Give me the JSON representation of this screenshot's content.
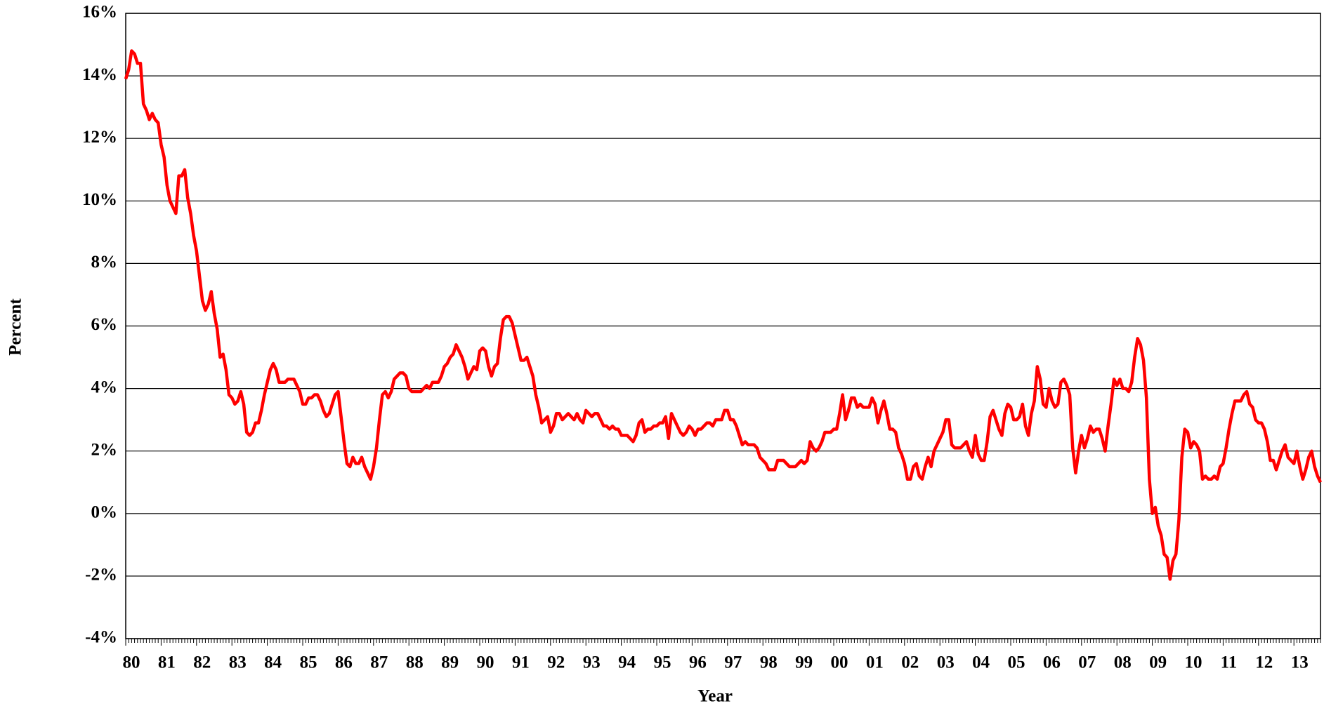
{
  "chart_data": {
    "type": "line",
    "x_label": "Year",
    "y_label": "Percent",
    "categories": [
      "80",
      null,
      null,
      null,
      null,
      null,
      null,
      null,
      null,
      null,
      null,
      null,
      "81",
      null,
      null,
      null,
      null,
      null,
      null,
      null,
      null,
      null,
      null,
      null,
      "82",
      null,
      null,
      null,
      null,
      null,
      null,
      null,
      null,
      null,
      null,
      null,
      "83",
      null,
      null,
      null,
      null,
      null,
      null,
      null,
      null,
      null,
      null,
      null,
      "84",
      null,
      null,
      null,
      null,
      null,
      null,
      null,
      null,
      null,
      null,
      null,
      "85",
      null,
      null,
      null,
      null,
      null,
      null,
      null,
      null,
      null,
      null,
      null,
      "86",
      null,
      null,
      null,
      null,
      null,
      null,
      null,
      null,
      null,
      null,
      null,
      "87",
      null,
      null,
      null,
      null,
      null,
      null,
      null,
      null,
      null,
      null,
      null,
      "88",
      null,
      null,
      null,
      null,
      null,
      null,
      null,
      null,
      null,
      null,
      null,
      "89",
      null,
      null,
      null,
      null,
      null,
      null,
      null,
      null,
      null,
      null,
      null,
      "90",
      null,
      null,
      null,
      null,
      null,
      null,
      null,
      null,
      null,
      null,
      null,
      "91",
      null,
      null,
      null,
      null,
      null,
      null,
      null,
      null,
      null,
      null,
      null,
      "92",
      null,
      null,
      null,
      null,
      null,
      null,
      null,
      null,
      null,
      null,
      null,
      "93",
      null,
      null,
      null,
      null,
      null,
      null,
      null,
      null,
      null,
      null,
      null,
      "94",
      null,
      null,
      null,
      null,
      null,
      null,
      null,
      null,
      null,
      null,
      null,
      "95",
      null,
      null,
      null,
      null,
      null,
      null,
      null,
      null,
      null,
      null,
      null,
      "96",
      null,
      null,
      null,
      null,
      null,
      null,
      null,
      null,
      null,
      null,
      null,
      "97",
      null,
      null,
      null,
      null,
      null,
      null,
      null,
      null,
      null,
      null,
      null,
      "98",
      null,
      null,
      null,
      null,
      null,
      null,
      null,
      null,
      null,
      null,
      null,
      "99",
      null,
      null,
      null,
      null,
      null,
      null,
      null,
      null,
      null,
      null,
      null,
      "00",
      null,
      null,
      null,
      null,
      null,
      null,
      null,
      null,
      null,
      null,
      null,
      "01",
      null,
      null,
      null,
      null,
      null,
      null,
      null,
      null,
      null,
      null,
      null,
      "02",
      null,
      null,
      null,
      null,
      null,
      null,
      null,
      null,
      null,
      null,
      null,
      "03",
      null,
      null,
      null,
      null,
      null,
      null,
      null,
      null,
      null,
      null,
      null,
      "04",
      null,
      null,
      null,
      null,
      null,
      null,
      null,
      null,
      null,
      null,
      null,
      "05",
      null,
      null,
      null,
      null,
      null,
      null,
      null,
      null,
      null,
      null,
      null,
      "06",
      null,
      null,
      null,
      null,
      null,
      null,
      null,
      null,
      null,
      null,
      null,
      "07",
      null,
      null,
      null,
      null,
      null,
      null,
      null,
      null,
      null,
      null,
      null,
      "08",
      null,
      null,
      null,
      null,
      null,
      null,
      null,
      null,
      null,
      null,
      null,
      "09",
      null,
      null,
      null,
      null,
      null,
      null,
      null,
      null,
      null,
      null,
      null,
      "10",
      null,
      null,
      null,
      null,
      null,
      null,
      null,
      null,
      null,
      null,
      null,
      "11",
      null,
      null,
      null,
      null,
      null,
      null,
      null,
      null,
      null,
      null,
      null,
      "12",
      null,
      null,
      null,
      null,
      null,
      null,
      null,
      null,
      null,
      null,
      null,
      "13",
      null,
      null,
      null,
      null,
      null,
      null,
      null,
      null,
      null
    ],
    "series": [
      {
        "color": "#ff0000",
        "values": [
          13.9,
          14.2,
          14.8,
          14.7,
          14.4,
          14.4,
          13.1,
          12.9,
          12.6,
          12.8,
          12.6,
          12.5,
          11.8,
          11.4,
          10.5,
          10.0,
          9.8,
          9.6,
          10.8,
          10.8,
          11.0,
          10.1,
          9.6,
          8.9,
          8.4,
          7.6,
          6.8,
          6.5,
          6.7,
          7.1,
          6.4,
          5.9,
          5.0,
          5.1,
          4.6,
          3.8,
          3.7,
          3.5,
          3.6,
          3.9,
          3.5,
          2.6,
          2.5,
          2.6,
          2.9,
          2.9,
          3.3,
          3.8,
          4.2,
          4.6,
          4.8,
          4.6,
          4.2,
          4.2,
          4.2,
          4.3,
          4.3,
          4.3,
          4.1,
          3.9,
          3.5,
          3.5,
          3.7,
          3.7,
          3.8,
          3.8,
          3.6,
          3.3,
          3.1,
          3.2,
          3.5,
          3.8,
          3.9,
          3.1,
          2.3,
          1.6,
          1.5,
          1.8,
          1.6,
          1.6,
          1.8,
          1.5,
          1.3,
          1.1,
          1.5,
          2.1,
          3.0,
          3.8,
          3.9,
          3.7,
          3.9,
          4.3,
          4.4,
          4.5,
          4.5,
          4.4,
          4.0,
          3.9,
          3.9,
          3.9,
          3.9,
          4.0,
          4.1,
          4.0,
          4.2,
          4.2,
          4.2,
          4.4,
          4.7,
          4.8,
          5.0,
          5.1,
          5.4,
          5.2,
          5.0,
          4.7,
          4.3,
          4.5,
          4.7,
          4.6,
          5.2,
          5.3,
          5.2,
          4.7,
          4.4,
          4.7,
          4.8,
          5.6,
          6.2,
          6.3,
          6.3,
          6.1,
          5.7,
          5.3,
          4.9,
          4.9,
          5.0,
          4.7,
          4.4,
          3.8,
          3.4,
          2.9,
          3.0,
          3.1,
          2.6,
          2.8,
          3.2,
          3.2,
          3.0,
          3.1,
          3.2,
          3.1,
          3.0,
          3.2,
          3.0,
          2.9,
          3.3,
          3.2,
          3.1,
          3.2,
          3.2,
          3.0,
          2.8,
          2.8,
          2.7,
          2.8,
          2.7,
          2.7,
          2.5,
          2.5,
          2.5,
          2.4,
          2.3,
          2.5,
          2.9,
          3.0,
          2.6,
          2.7,
          2.7,
          2.8,
          2.8,
          2.9,
          2.9,
          3.1,
          2.4,
          3.2,
          3.0,
          2.8,
          2.6,
          2.5,
          2.6,
          2.8,
          2.7,
          2.5,
          2.7,
          2.7,
          2.8,
          2.9,
          2.9,
          2.8,
          3.0,
          3.0,
          3.0,
          3.3,
          3.3,
          3.0,
          3.0,
          2.8,
          2.5,
          2.2,
          2.3,
          2.2,
          2.2,
          2.2,
          2.1,
          1.8,
          1.7,
          1.6,
          1.4,
          1.4,
          1.4,
          1.7,
          1.7,
          1.7,
          1.6,
          1.5,
          1.5,
          1.5,
          1.6,
          1.7,
          1.6,
          1.7,
          2.3,
          2.1,
          2.0,
          2.1,
          2.3,
          2.6,
          2.6,
          2.6,
          2.7,
          2.7,
          3.2,
          3.8,
          3.0,
          3.3,
          3.7,
          3.7,
          3.4,
          3.5,
          3.4,
          3.4,
          3.4,
          3.7,
          3.5,
          2.9,
          3.3,
          3.6,
          3.2,
          2.7,
          2.7,
          2.6,
          2.1,
          1.9,
          1.6,
          1.1,
          1.1,
          1.5,
          1.6,
          1.2,
          1.1,
          1.5,
          1.8,
          1.5,
          2.0,
          2.2,
          2.4,
          2.6,
          3.0,
          3.0,
          2.2,
          2.1,
          2.1,
          2.1,
          2.2,
          2.3,
          2.0,
          1.8,
          2.5,
          1.9,
          1.7,
          1.7,
          2.3,
          3.1,
          3.3,
          3.0,
          2.7,
          2.5,
          3.2,
          3.5,
          3.4,
          3.0,
          3.0,
          3.1,
          3.5,
          2.8,
          2.5,
          3.2,
          3.6,
          4.7,
          4.3,
          3.5,
          3.4,
          4.0,
          3.6,
          3.4,
          3.5,
          4.2,
          4.3,
          4.1,
          3.8,
          2.1,
          1.3,
          2.0,
          2.5,
          2.1,
          2.4,
          2.8,
          2.6,
          2.7,
          2.7,
          2.4,
          2.0,
          2.8,
          3.5,
          4.3,
          4.1,
          4.3,
          4.0,
          4.0,
          3.9,
          4.2,
          5.0,
          5.6,
          5.4,
          4.9,
          3.7,
          1.1,
          0.0,
          0.2,
          -0.4,
          -0.7,
          -1.3,
          -1.4,
          -2.1,
          -1.5,
          -1.3,
          -0.2,
          1.8,
          2.7,
          2.6,
          2.1,
          2.3,
          2.2,
          2.0,
          1.1,
          1.2,
          1.1,
          1.1,
          1.2,
          1.1,
          1.5,
          1.6,
          2.1,
          2.7,
          3.2,
          3.6,
          3.6,
          3.6,
          3.8,
          3.9,
          3.5,
          3.4,
          3.0,
          2.9,
          2.9,
          2.7,
          2.3,
          1.7,
          1.7,
          1.4,
          1.7,
          2.0,
          2.2,
          1.8,
          1.7,
          1.6,
          2.0,
          1.5,
          1.1,
          1.4,
          1.8,
          2.0,
          1.5,
          1.2,
          1.0
        ]
      }
    ],
    "ylim": [
      -4,
      16
    ],
    "yticks": [
      {
        "value": -4,
        "label": "-4%"
      },
      {
        "value": -2,
        "label": "-2%"
      },
      {
        "value": 0,
        "label": "0%"
      },
      {
        "value": 2,
        "label": "2%"
      },
      {
        "value": 4,
        "label": "4%"
      },
      {
        "value": 6,
        "label": "6%"
      },
      {
        "value": 8,
        "label": "8%"
      },
      {
        "value": 10,
        "label": "10%"
      },
      {
        "value": 12,
        "label": "12%"
      },
      {
        "value": 14,
        "label": "14%"
      },
      {
        "value": 16,
        "label": "16%"
      }
    ],
    "grid": true
  }
}
